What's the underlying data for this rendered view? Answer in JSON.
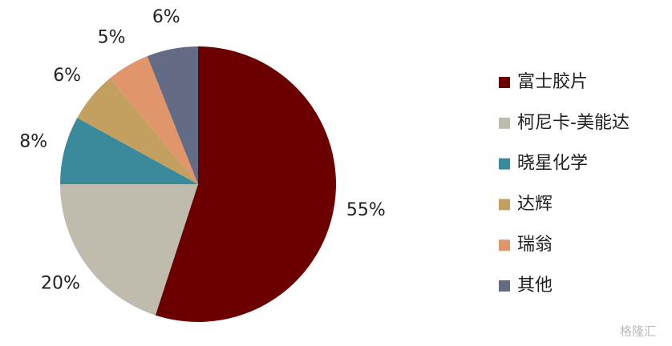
{
  "chart_data": {
    "type": "pie",
    "categories": [
      "富士胶片",
      "柯尼卡-美能达",
      "晓星化学",
      "达辉",
      "瑞翁",
      "其他"
    ],
    "values": [
      55,
      20,
      8,
      6,
      5,
      6
    ],
    "value_labels": [
      "55%",
      "20%",
      "8%",
      "6%",
      "5%",
      "6%"
    ],
    "colors": [
      "#6b0000",
      "#bfbcae",
      "#3a8a9c",
      "#c4a060",
      "#e0956a",
      "#646b85"
    ],
    "legend": "right",
    "watermark": "格隆汇"
  }
}
